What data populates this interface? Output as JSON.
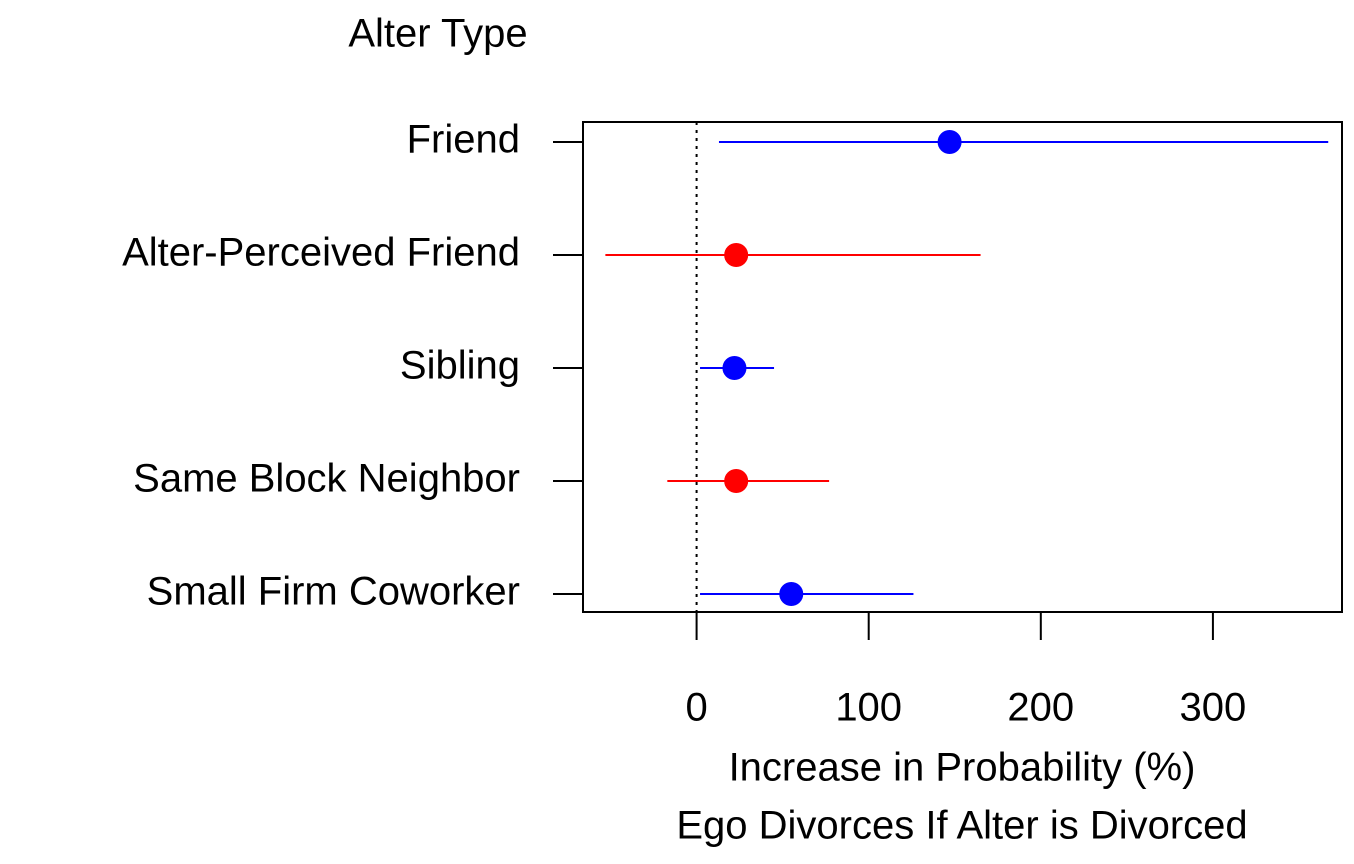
{
  "chart_data": {
    "type": "forest",
    "title": "Alter Type",
    "xlabel": [
      "Increase in Probability (%)",
      "Ego Divorces If Alter is Divorced"
    ],
    "categories": [
      "Friend",
      "Alter-Perceived Friend",
      "Sibling",
      "Same Block Neighbor",
      "Small Firm Coworker"
    ],
    "values": [
      147,
      23,
      22,
      23,
      55
    ],
    "lower": [
      13,
      -53,
      2,
      -17,
      2
    ],
    "upper": [
      367,
      165,
      45,
      77,
      126
    ],
    "colors": [
      "#0000ff",
      "#ff0000",
      "#0000ff",
      "#ff0000",
      "#0000ff"
    ],
    "ref_line": 0,
    "xlim": [
      -66,
      375
    ],
    "xticks": [
      0,
      100,
      200,
      300
    ]
  }
}
